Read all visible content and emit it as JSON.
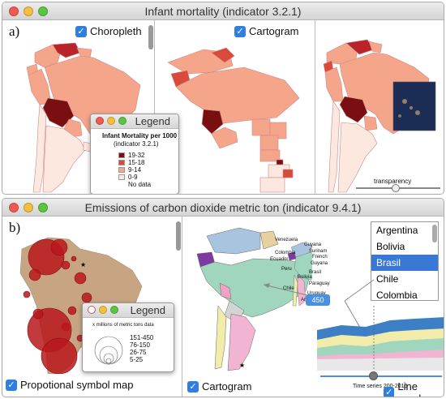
{
  "top_window": {
    "title": "Infant mortality (indicator 3.2.1)",
    "panel_label": "a)",
    "choropleth_label": "Choropleth",
    "cartogram_label": "Cartogram",
    "legend": {
      "title": "Legend",
      "heading": "Infant Mortality per 1000",
      "subheading": "(indicator 3.2.1)",
      "items": [
        {
          "label": "19-32",
          "color": "#7a0f12"
        },
        {
          "label": "15-18",
          "color": "#d94a3d"
        },
        {
          "label": "9-14",
          "color": "#f4a58a"
        },
        {
          "label": "0-9",
          "color": "#fde8e0"
        },
        {
          "label": "No data",
          "color": "#ffffff"
        }
      ]
    },
    "transparency_label": "transparency"
  },
  "bottom_window": {
    "title": "Emissions of carbon dioxide metric ton (indicator 9.4.1)",
    "panel_label": "b)",
    "symbol_map_label": "Propotional symbol map",
    "cartogram_label": "Cartogram",
    "line_graph_label": "Line graph",
    "legend": {
      "title": "Legend",
      "heading": "x millions of metric tons data",
      "items": [
        "151-450",
        "76-150",
        "26-75",
        "5-25"
      ]
    },
    "countries": [
      "Argentina",
      "Bolivia",
      "Brasil",
      "Chile",
      "Colombia"
    ],
    "selected_country": "Brasil",
    "tooltip_value": "450",
    "time_series_label": "Time series 200-2015",
    "mini_labels": [
      "Venezuela",
      "Guyana",
      "Surinam",
      "French",
      "Colombia",
      "Ecuador",
      "Guyana",
      "Brasil",
      "Peru",
      "Bolivia",
      "Paraguay",
      "Chile",
      "Uruguay",
      "Argentina"
    ]
  },
  "colors": {
    "check_blue": "#2f7fe0",
    "selection_blue": "#3a78d6"
  }
}
